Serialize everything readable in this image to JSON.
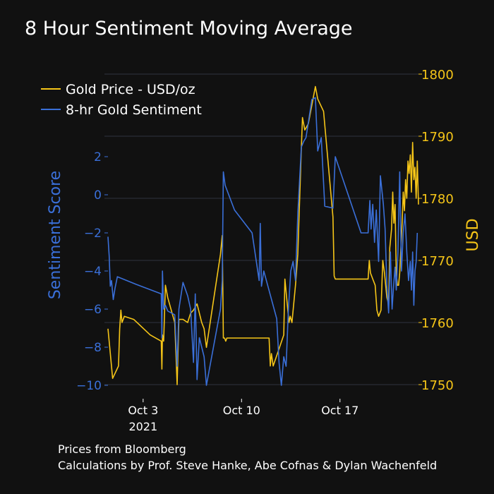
{
  "chart_data": {
    "type": "line",
    "title": "8 Hour Sentiment Moving Average",
    "x_ticks": [
      {
        "date": "2021-10-03",
        "label": "Oct 3",
        "sublabel": "2021"
      },
      {
        "date": "2021-10-10",
        "label": "Oct 10",
        "sublabel": ""
      },
      {
        "date": "2021-10-17",
        "label": "Oct 17",
        "sublabel": ""
      }
    ],
    "xlim": [
      "2021-09-30T12:00",
      "2021-10-21T15:00"
    ],
    "y_left": {
      "label": "Sentiment Score",
      "range": [
        -10,
        3.5
      ],
      "ticks": [
        -10,
        -8,
        -6,
        -4,
        -2,
        0,
        2
      ],
      "color": "#3a6fd8"
    },
    "y_right": {
      "label": "USD",
      "range": [
        1750,
        1800
      ],
      "ticks": [
        1750,
        1760,
        1770,
        1780,
        1790,
        1800
      ],
      "color": "#f5c518"
    },
    "grid": true,
    "legend_position": "top-left",
    "series": [
      {
        "name": "Gold Price - USD/oz",
        "axis": "right",
        "color": "#f5c518",
        "points": [
          [
            "2021-09-30T12:00",
            1759.0
          ],
          [
            "2021-09-30T15:00",
            1756.0
          ],
          [
            "2021-09-30T20:00",
            1751.0
          ],
          [
            "2021-10-01T06:00",
            1753.0
          ],
          [
            "2021-10-01T08:00",
            1759.0
          ],
          [
            "2021-10-01T10:00",
            1762.0
          ],
          [
            "2021-10-01T12:00",
            1760.0
          ],
          [
            "2021-10-01T16:00",
            1761.0
          ],
          [
            "2021-10-02T08:00",
            1760.5
          ],
          [
            "2021-10-03T12:00",
            1758.0
          ],
          [
            "2021-10-04T07:00",
            1757.0
          ],
          [
            "2021-10-04T08:00",
            1752.5
          ],
          [
            "2021-10-04T09:00",
            1758.0
          ],
          [
            "2021-10-04T11:00",
            1757.0
          ],
          [
            "2021-10-04T14:00",
            1766.0
          ],
          [
            "2021-10-04T18:00",
            1764.0
          ],
          [
            "2021-10-05T06:00",
            1760.0
          ],
          [
            "2021-10-05T10:00",
            1750.0
          ],
          [
            "2021-10-05T13:00",
            1760.5
          ],
          [
            "2021-10-05T20:00",
            1760.5
          ],
          [
            "2021-10-06T04:00",
            1760.0
          ],
          [
            "2021-10-06T09:00",
            1761.5
          ],
          [
            "2021-10-06T14:00",
            1762.0
          ],
          [
            "2021-10-06T20:00",
            1763.0
          ],
          [
            "2021-10-07T04:00",
            1760.0
          ],
          [
            "2021-10-07T08:00",
            1759.0
          ],
          [
            "2021-10-07T12:00",
            1756.0
          ],
          [
            "2021-10-08T12:00",
            1771.0
          ],
          [
            "2021-10-08T15:00",
            1774.0
          ],
          [
            "2021-10-08T17:00",
            1757.5
          ],
          [
            "2021-10-08T19:00",
            1757.5
          ],
          [
            "2021-10-08T21:00",
            1757.0
          ],
          [
            "2021-10-08T23:00",
            1757.5
          ],
          [
            "2021-10-11T23:00",
            1757.5
          ],
          [
            "2021-10-12T01:00",
            1753.0
          ],
          [
            "2021-10-12T03:00",
            1755.0
          ],
          [
            "2021-10-12T06:00",
            1753.0
          ],
          [
            "2021-10-13T00:00",
            1758.0
          ],
          [
            "2021-10-13T02:00",
            1767.0
          ],
          [
            "2021-10-13T06:00",
            1763.0
          ],
          [
            "2021-10-13T09:00",
            1760.0
          ],
          [
            "2021-10-13T11:00",
            1761.0
          ],
          [
            "2021-10-13T14:00",
            1760.0
          ],
          [
            "2021-10-13T20:00",
            1766.0
          ],
          [
            "2021-10-14T00:00",
            1771.0
          ],
          [
            "2021-10-14T06:00",
            1788.0
          ],
          [
            "2021-10-14T08:00",
            1793.0
          ],
          [
            "2021-10-14T12:00",
            1791.0
          ],
          [
            "2021-10-14T18:00",
            1792.0
          ],
          [
            "2021-10-15T06:00",
            1798.0
          ],
          [
            "2021-10-15T10:00",
            1796.0
          ],
          [
            "2021-10-15T20:00",
            1794.0
          ],
          [
            "2021-10-16T12:00",
            1777.0
          ],
          [
            "2021-10-16T14:00",
            1767.5
          ],
          [
            "2021-10-16T16:00",
            1767.0
          ],
          [
            "2021-10-16T20:00",
            1767.0
          ],
          [
            "2021-10-19T00:00",
            1767.0
          ],
          [
            "2021-10-19T02:00",
            1770.0
          ],
          [
            "2021-10-19T04:00",
            1768.0
          ],
          [
            "2021-10-19T08:00",
            1767.0
          ],
          [
            "2021-10-19T12:00",
            1766.0
          ],
          [
            "2021-10-19T15:00",
            1762.0
          ],
          [
            "2021-10-19T18:00",
            1761.0
          ],
          [
            "2021-10-19T22:00",
            1762.0
          ],
          [
            "2021-10-20T01:00",
            1770.0
          ],
          [
            "2021-10-20T04:00",
            1768.0
          ],
          [
            "2021-10-20T08:00",
            1764.0
          ],
          [
            "2021-10-20T11:00",
            1763.0
          ],
          [
            "2021-10-20T13:00",
            1772.0
          ],
          [
            "2021-10-20T16:00",
            1775.0
          ],
          [
            "2021-10-20T18:00",
            1781.0
          ],
          [
            "2021-10-20T20:00",
            1776.0
          ],
          [
            "2021-10-20T22:00",
            1779.0
          ],
          [
            "2021-10-21T00:00",
            1768.0
          ],
          [
            "2021-10-21T02:00",
            1766.0
          ],
          [
            "2021-10-21T04:00",
            1766.0
          ],
          [
            "2021-10-21T06:00",
            1768.0
          ],
          [
            "2021-10-21T08:00",
            1772.0
          ],
          [
            "2021-10-21T10:00",
            1776.0
          ],
          [
            "2021-10-21T12:00",
            1781.0
          ],
          [
            "2021-10-21T14:00",
            1778.0
          ],
          [
            "2021-10-21T16:00",
            1783.0
          ],
          [
            "2021-10-21T18:00",
            1780.0
          ],
          [
            "2021-10-21T20:00",
            1786.0
          ],
          [
            "2021-10-21T22:00",
            1784.0
          ],
          [
            "2021-10-22T00:00",
            1787.0
          ],
          [
            "2021-10-22T02:00",
            1781.0
          ],
          [
            "2021-10-22T04:00",
            1789.0
          ],
          [
            "2021-10-22T06:00",
            1783.0
          ],
          [
            "2021-10-22T08:00",
            1785.0
          ],
          [
            "2021-10-22T10:00",
            1780.0
          ],
          [
            "2021-10-22T12:00",
            1786.0
          ],
          [
            "2021-10-22T14:00",
            1779.0
          ]
        ]
      },
      {
        "name": "8-hr Gold Sentiment",
        "axis": "left",
        "color": "#3a6fd8",
        "points": [
          [
            "2021-09-30T12:00",
            -2.2
          ],
          [
            "2021-09-30T14:00",
            -3.2
          ],
          [
            "2021-09-30T16:00",
            -4.8
          ],
          [
            "2021-09-30T18:00",
            -4.5
          ],
          [
            "2021-09-30T21:00",
            -5.5
          ],
          [
            "2021-10-01T00:00",
            -4.9
          ],
          [
            "2021-10-01T04:00",
            -4.3
          ],
          [
            "2021-10-02T12:00",
            -4.7
          ],
          [
            "2021-10-04T07:00",
            -5.2
          ],
          [
            "2021-10-04T08:00",
            -7.5
          ],
          [
            "2021-10-04T09:00",
            -4.0
          ],
          [
            "2021-10-04T11:00",
            -6.0
          ],
          [
            "2021-10-04T14:00",
            -5.8
          ],
          [
            "2021-10-04T18:00",
            -6.1
          ],
          [
            "2021-10-05T06:00",
            -6.3
          ],
          [
            "2021-10-05T10:00",
            -9.0
          ],
          [
            "2021-10-05T13:00",
            -6.0
          ],
          [
            "2021-10-05T20:00",
            -4.6
          ],
          [
            "2021-10-06T04:00",
            -5.3
          ],
          [
            "2021-10-06T09:00",
            -6.0
          ],
          [
            "2021-10-06T14:00",
            -8.8
          ],
          [
            "2021-10-06T17:00",
            -5.2
          ],
          [
            "2021-10-06T20:00",
            -9.7
          ],
          [
            "2021-10-07T00:00",
            -7.5
          ],
          [
            "2021-10-07T08:00",
            -8.5
          ],
          [
            "2021-10-07T12:00",
            -10.0
          ],
          [
            "2021-10-08T12:00",
            -6.0
          ],
          [
            "2021-10-08T15:00",
            -4.5
          ],
          [
            "2021-10-08T17:00",
            1.2
          ],
          [
            "2021-10-08T20:00",
            0.5
          ],
          [
            "2021-10-09T12:00",
            -0.8
          ],
          [
            "2021-10-10T18:00",
            -2.0
          ],
          [
            "2021-10-11T06:00",
            -4.5
          ],
          [
            "2021-10-11T08:00",
            -1.5
          ],
          [
            "2021-10-11T10:00",
            -4.8
          ],
          [
            "2021-10-11T14:00",
            -4.0
          ],
          [
            "2021-10-12T12:00",
            -6.5
          ],
          [
            "2021-10-12T16:00",
            -8.8
          ],
          [
            "2021-10-12T20:00",
            -10.0
          ],
          [
            "2021-10-13T00:00",
            -8.5
          ],
          [
            "2021-10-13T04:00",
            -9.0
          ],
          [
            "2021-10-13T08:00",
            -6.0
          ],
          [
            "2021-10-13T12:00",
            -4.0
          ],
          [
            "2021-10-13T16:00",
            -3.5
          ],
          [
            "2021-10-13T20:00",
            -4.5
          ],
          [
            "2021-10-14T00:00",
            -1.0
          ],
          [
            "2021-10-14T06:00",
            2.5
          ],
          [
            "2021-10-14T10:00",
            2.8
          ],
          [
            "2021-10-14T14:00",
            3.0
          ],
          [
            "2021-10-15T00:00",
            5.0
          ],
          [
            "2021-10-15T06:00",
            5.1
          ],
          [
            "2021-10-15T10:00",
            2.3
          ],
          [
            "2021-10-15T16:00",
            3.0
          ],
          [
            "2021-10-15T22:00",
            -0.6
          ],
          [
            "2021-10-16T12:00",
            -0.7
          ],
          [
            "2021-10-16T16:00",
            2.0
          ],
          [
            "2021-10-18T12:00",
            -2.0
          ],
          [
            "2021-10-19T00:00",
            -2.0
          ],
          [
            "2021-10-19T03:00",
            -0.3
          ],
          [
            "2021-10-19T05:00",
            -1.8
          ],
          [
            "2021-10-19T08:00",
            -0.5
          ],
          [
            "2021-10-19T11:00",
            -2.5
          ],
          [
            "2021-10-19T14:00",
            -0.8
          ],
          [
            "2021-10-19T18:00",
            -3.5
          ],
          [
            "2021-10-19T21:00",
            1.0
          ],
          [
            "2021-10-20T02:00",
            -0.5
          ],
          [
            "2021-10-20T05:00",
            -1.8
          ],
          [
            "2021-10-20T08:00",
            -4.8
          ],
          [
            "2021-10-20T11:00",
            -6.2
          ],
          [
            "2021-10-20T14:00",
            -3.0
          ],
          [
            "2021-10-20T17:00",
            -6.0
          ],
          [
            "2021-10-20T19:00",
            -5.0
          ],
          [
            "2021-10-20T22:00",
            -3.8
          ],
          [
            "2021-10-21T00:00",
            -5.0
          ],
          [
            "2021-10-21T03:00",
            -3.0
          ],
          [
            "2021-10-21T06:00",
            1.2
          ],
          [
            "2021-10-21T09:00",
            -4.0
          ],
          [
            "2021-10-21T12:00",
            -2.0
          ],
          [
            "2021-10-21T15:00",
            -1.0
          ],
          [
            "2021-10-21T18:00",
            -3.0
          ],
          [
            "2021-10-21T21:00",
            -4.5
          ],
          [
            "2021-10-22T00:00",
            -3.5
          ],
          [
            "2021-10-22T02:00",
            -5.0
          ],
          [
            "2021-10-22T04:00",
            -3.0
          ],
          [
            "2021-10-22T06:00",
            -5.8
          ],
          [
            "2021-10-22T08:00",
            -4.0
          ],
          [
            "2021-10-22T10:00",
            -3.5
          ],
          [
            "2021-10-22T12:00",
            -2.0
          ]
        ]
      }
    ]
  },
  "footnotes": {
    "line1": "Prices from Bloomberg",
    "line2": "Calculations by Prof. Steve Hanke, Abe Cofnas & Dylan Wachenfeld"
  }
}
